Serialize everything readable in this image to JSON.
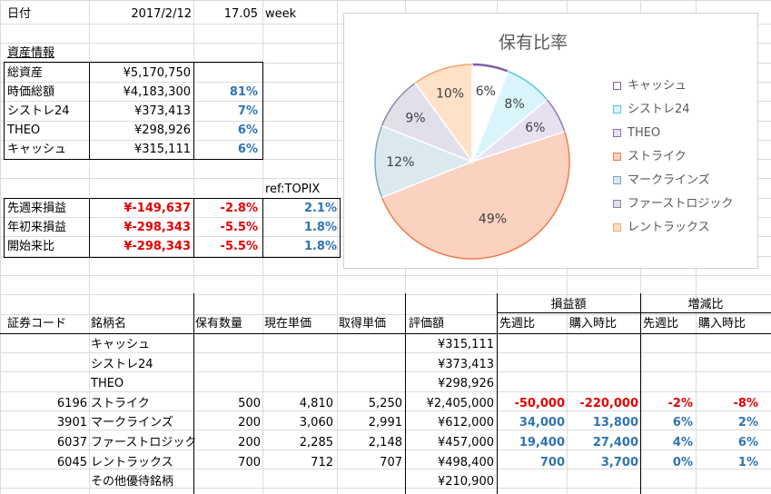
{
  "header": {
    "date_label": "日付",
    "date_value": "2017/2/12",
    "week_num": "17.05",
    "week_label": "week"
  },
  "assets": {
    "title": "資産情報",
    "rows": [
      {
        "label": "総資産",
        "value": "¥5,170,750",
        "pct": ""
      },
      {
        "label": "時価総額",
        "value": "¥4,183,300",
        "pct": "81%"
      },
      {
        "label": "シストレ24",
        "value": "¥373,413",
        "pct": "7%"
      },
      {
        "label": "THEO",
        "value": "¥298,926",
        "pct": "6%"
      },
      {
        "label": "キャッシュ",
        "value": "¥315,111",
        "pct": "6%"
      }
    ]
  },
  "pnl": {
    "ref_label": "ref:TOPIX",
    "rows": [
      {
        "label": "先週来損益",
        "value": "¥-149,637",
        "pct": "-2.8%",
        "ref": "2.1%"
      },
      {
        "label": "年初来損益",
        "value": "¥-298,343",
        "pct": "-5.5%",
        "ref": "1.8%"
      },
      {
        "label": "開始来比",
        "value": "¥-298,343",
        "pct": "-5.5%",
        "ref": "1.8%"
      }
    ]
  },
  "table": {
    "group_headers": {
      "pnl": "損益額",
      "change": "増減比"
    },
    "columns": [
      "証券コード",
      "銘柄名",
      "保有数量",
      "現在単価",
      "取得単価",
      "評価額",
      "先週比",
      "購入時比",
      "先週比",
      "購入時比"
    ],
    "rows": [
      {
        "code": "",
        "name": "キャッシュ",
        "qty": "",
        "price": "",
        "cost": "",
        "value": "¥315,111",
        "wk": "",
        "buy": "",
        "wk_pct": "",
        "buy_pct": ""
      },
      {
        "code": "",
        "name": "シストレ24",
        "qty": "",
        "price": "",
        "cost": "",
        "value": "¥373,413",
        "wk": "",
        "buy": "",
        "wk_pct": "",
        "buy_pct": ""
      },
      {
        "code": "",
        "name": "THEO",
        "qty": "",
        "price": "",
        "cost": "",
        "value": "¥298,926",
        "wk": "",
        "buy": "",
        "wk_pct": "",
        "buy_pct": ""
      },
      {
        "code": "6196",
        "name": "ストライク",
        "qty": "500",
        "price": "4,810",
        "cost": "5,250",
        "value": "¥2,405,000",
        "wk": "-50,000",
        "buy": "-220,000",
        "wk_pct": "-2%",
        "buy_pct": "-8%"
      },
      {
        "code": "3901",
        "name": "マークラインズ",
        "qty": "200",
        "price": "3,060",
        "cost": "2,991",
        "value": "¥612,000",
        "wk": "34,000",
        "buy": "13,800",
        "wk_pct": "6%",
        "buy_pct": "2%"
      },
      {
        "code": "6037",
        "name": "ファーストロジック",
        "qty": "200",
        "price": "2,285",
        "cost": "2,148",
        "value": "¥457,000",
        "wk": "19,400",
        "buy": "27,400",
        "wk_pct": "4%",
        "buy_pct": "6%"
      },
      {
        "code": "6045",
        "name": "レントラックス",
        "qty": "700",
        "price": "712",
        "cost": "707",
        "value": "¥498,400",
        "wk": "700",
        "buy": "3,700",
        "wk_pct": "0%",
        "buy_pct": "1%"
      },
      {
        "code": "",
        "name": "その他優待銘柄",
        "qty": "",
        "price": "",
        "cost": "",
        "value": "¥210,900",
        "wk": "",
        "buy": "",
        "wk_pct": "",
        "buy_pct": ""
      }
    ]
  },
  "colors": {
    "negative": "#e60000",
    "positive": "#2e74b5"
  },
  "chart_data": {
    "type": "pie",
    "title": "保有比率",
    "legend_position": "right",
    "categories": [
      "キャッシュ",
      "シストレ24",
      "THEO",
      "ストライク",
      "マークラインズ",
      "ファーストロジック",
      "レントラックス"
    ],
    "values": [
      6,
      8,
      6,
      49,
      12,
      9,
      10
    ],
    "labels": [
      "6%",
      "8%",
      "6%",
      "49%",
      "12%",
      "9%",
      "10%"
    ],
    "fill_colors": [
      "#ffffff",
      "#d9f5fb",
      "#e8e0f1",
      "#fbd1bf",
      "#dbe9ee",
      "#e2dfea",
      "#fde2c8"
    ],
    "edge_colors": [
      "#7f5fa9",
      "#57c5e0",
      "#8a73b5",
      "#f1794a",
      "#7fa7b6",
      "#8a84a3",
      "#f5a56a"
    ]
  }
}
